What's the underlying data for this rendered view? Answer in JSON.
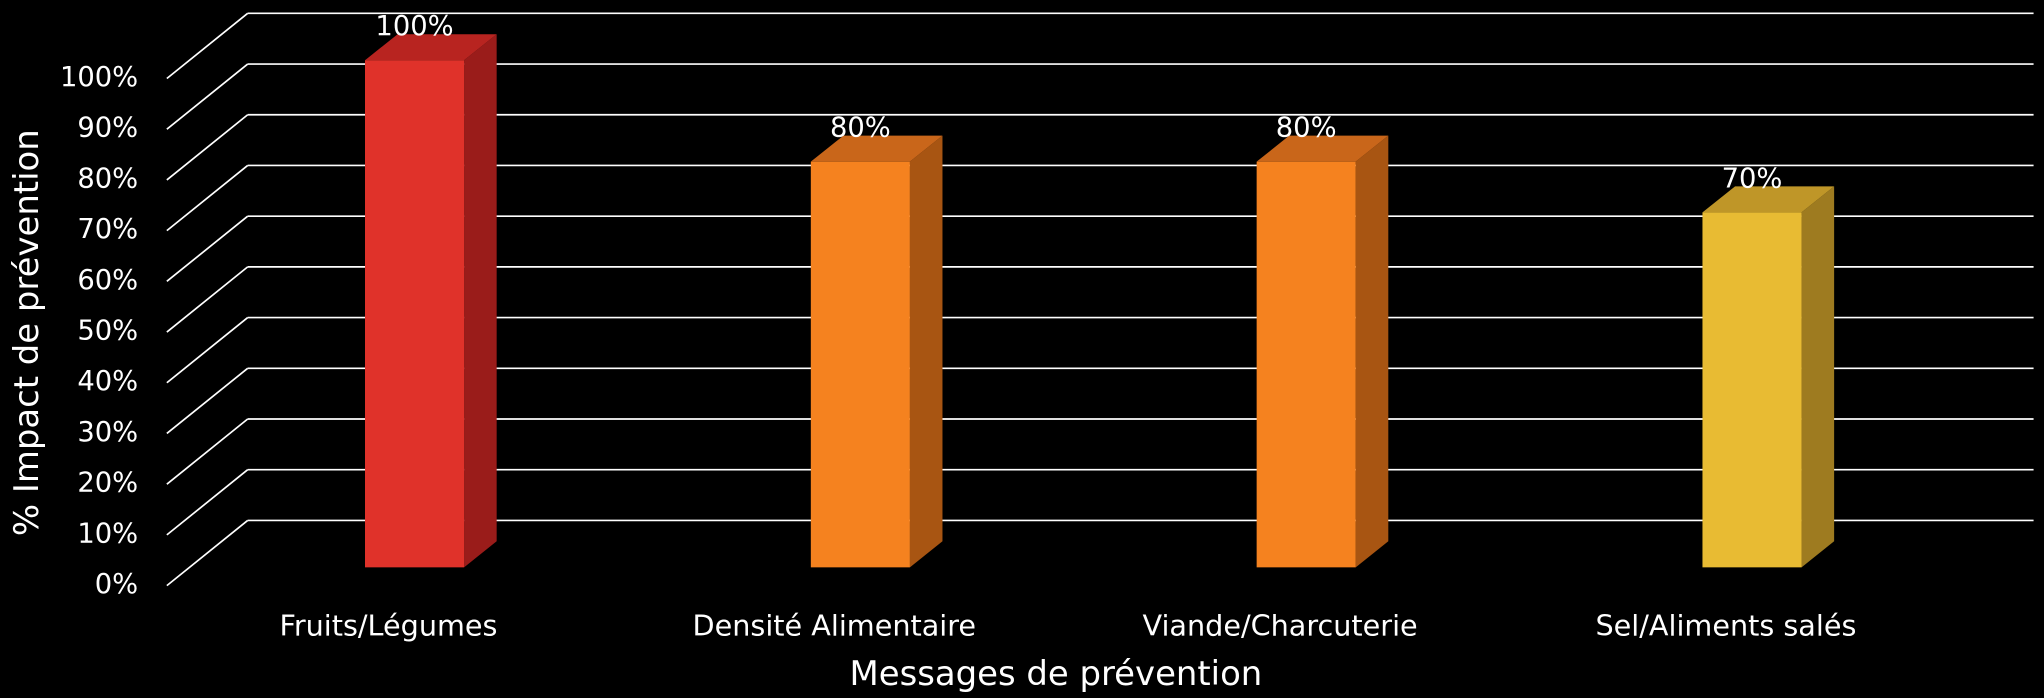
{
  "chart_data": {
    "type": "bar",
    "categories": [
      "Fruits/Légumes",
      "Densité Alimentaire",
      "Viande/Charcuterie",
      "Sel/Aliments salés"
    ],
    "values": [
      100,
      80,
      80,
      70
    ],
    "value_labels": [
      "100%",
      "80%",
      "80%",
      "70%"
    ],
    "colors": [
      "#e0322a",
      "#f5821f",
      "#f5821f",
      "#e8bb33"
    ],
    "side_colors": [
      "#9a1c1a",
      "#a85512",
      "#a85512",
      "#9e7b20"
    ],
    "top_colors": [
      "#b82420",
      "#c9661a",
      "#c9661a",
      "#bf9628"
    ],
    "ylabel": "% Impact de prévention",
    "xlabel": "Messages de prévention",
    "ylim": [
      0,
      100
    ],
    "yticks": [
      {
        "value": 0,
        "label": "0%"
      },
      {
        "value": 10,
        "label": "10%"
      },
      {
        "value": 20,
        "label": "20%"
      },
      {
        "value": 30,
        "label": "30%"
      },
      {
        "value": 40,
        "label": "40%"
      },
      {
        "value": 50,
        "label": "50%"
      },
      {
        "value": 60,
        "label": "60%"
      },
      {
        "value": 70,
        "label": "70%"
      },
      {
        "value": 80,
        "label": "80%"
      },
      {
        "value": 90,
        "label": "90%"
      },
      {
        "value": 100,
        "label": "100%"
      }
    ],
    "grid": true
  }
}
